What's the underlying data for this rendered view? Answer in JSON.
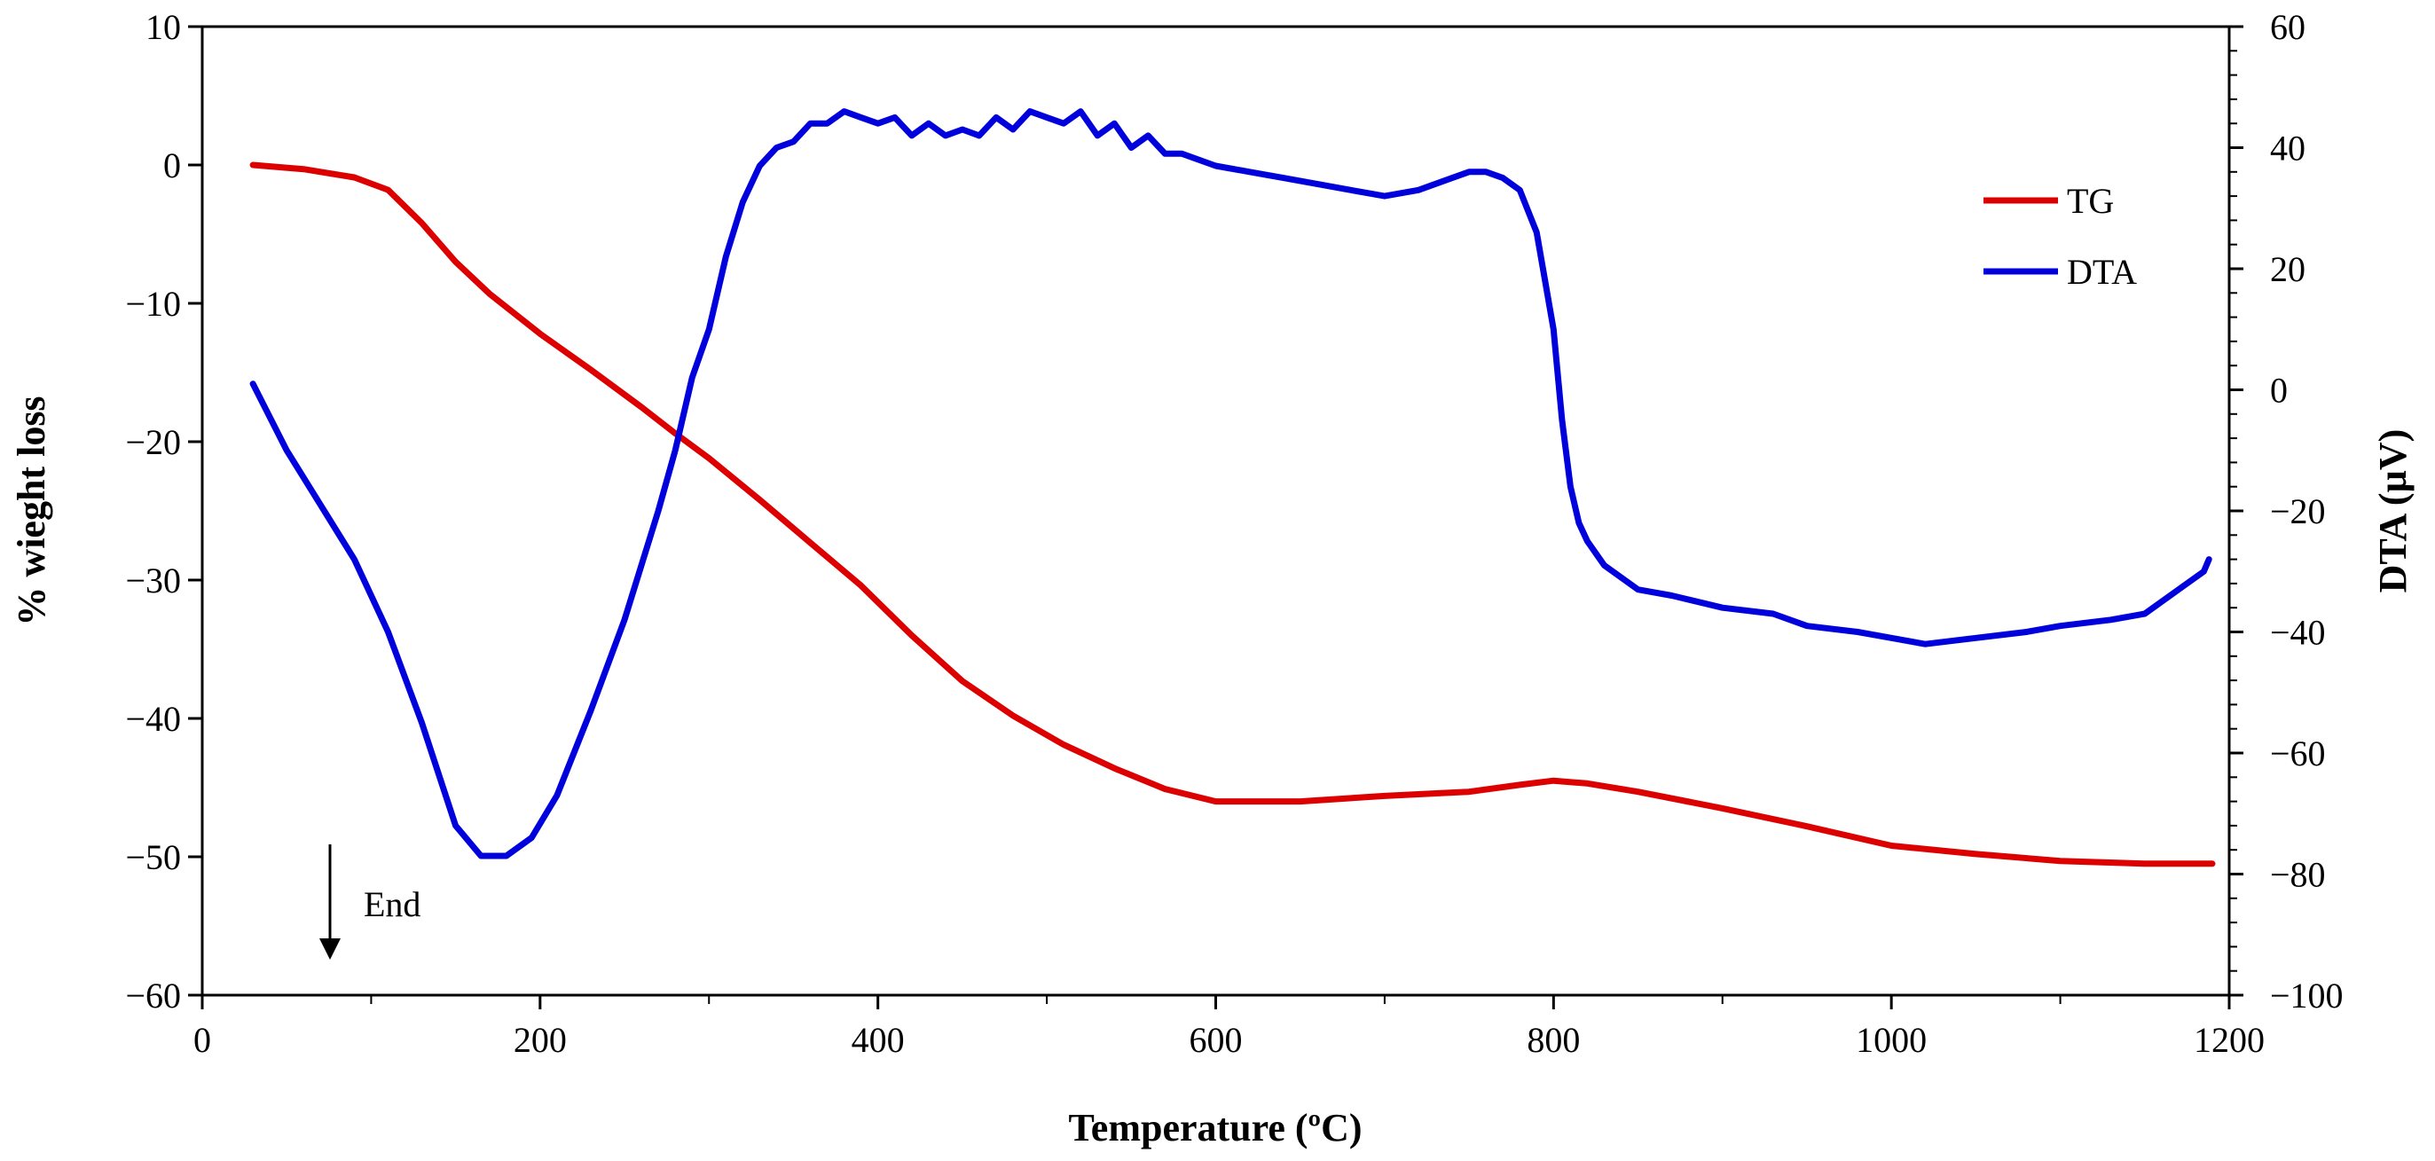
{
  "chart_data": {
    "type": "line",
    "title": "",
    "xlabel": "Temperature (ºC)",
    "ylabel_left": "% wieght loss",
    "ylabel_right": "DTA (µV)",
    "xlim": [
      0,
      1200
    ],
    "ylim_left": [
      -60,
      10
    ],
    "ylim_right": [
      -100,
      60
    ],
    "x_ticks": [
      0,
      200,
      400,
      600,
      800,
      1000,
      1200
    ],
    "y_left_ticks": [
      -60,
      -50,
      -40,
      -30,
      -20,
      -10,
      0,
      10
    ],
    "y_right_ticks": [
      -100,
      -80,
      -60,
      -40,
      -20,
      0,
      20,
      40,
      60
    ],
    "grid": false,
    "legend_position": "top-right",
    "series": [
      {
        "name": "TG",
        "axis": "left",
        "color": "#dd0000",
        "x": [
          30,
          60,
          90,
          110,
          130,
          150,
          170,
          200,
          230,
          260,
          280,
          300,
          330,
          360,
          390,
          420,
          450,
          480,
          510,
          540,
          570,
          600,
          650,
          700,
          750,
          780,
          800,
          820,
          850,
          900,
          950,
          1000,
          1050,
          1100,
          1150,
          1190
        ],
        "values": [
          0,
          -0.3,
          -0.9,
          -1.8,
          -4.2,
          -7.0,
          -9.3,
          -12.2,
          -14.8,
          -17.5,
          -19.4,
          -21.2,
          -24.2,
          -27.3,
          -30.4,
          -34.0,
          -37.3,
          -39.8,
          -41.9,
          -43.6,
          -45.1,
          -46.0,
          -46.0,
          -45.6,
          -45.3,
          -44.8,
          -44.5,
          -44.7,
          -45.3,
          -46.5,
          -47.8,
          -49.2,
          -49.8,
          -50.3,
          -50.5,
          -50.5
        ]
      },
      {
        "name": "DTA",
        "axis": "right",
        "color": "#0000dd",
        "x": [
          30,
          50,
          70,
          90,
          110,
          130,
          150,
          165,
          180,
          195,
          210,
          230,
          250,
          270,
          280,
          290,
          300,
          310,
          320,
          330,
          340,
          350,
          360,
          370,
          380,
          390,
          400,
          410,
          420,
          430,
          440,
          450,
          460,
          470,
          480,
          490,
          500,
          510,
          520,
          530,
          540,
          550,
          560,
          570,
          580,
          600,
          620,
          640,
          660,
          680,
          700,
          720,
          740,
          750,
          760,
          770,
          780,
          790,
          800,
          805,
          810,
          815,
          820,
          830,
          850,
          870,
          900,
          930,
          950,
          980,
          1000,
          1020,
          1050,
          1080,
          1100,
          1130,
          1150,
          1170,
          1185,
          1188
        ],
        "values": [
          1,
          -10,
          -19,
          -28,
          -40,
          -55,
          -72,
          -77,
          -77,
          -74,
          -67,
          -53,
          -38,
          -20,
          -10,
          2,
          10,
          22,
          31,
          37,
          40,
          41,
          44,
          44,
          46,
          45,
          44,
          45,
          42,
          44,
          42,
          43,
          42,
          45,
          43,
          46,
          45,
          44,
          46,
          42,
          44,
          40,
          42,
          39,
          39,
          37,
          36,
          35,
          34,
          33,
          32,
          33,
          35,
          36,
          36,
          35,
          33,
          26,
          10,
          -5,
          -16,
          -22,
          -25,
          -29,
          -33,
          -34,
          -36,
          -37,
          -39,
          -40,
          -41,
          -42,
          -41,
          -40,
          -39,
          -38,
          -37,
          -33,
          -30,
          -28
        ]
      }
    ],
    "legend": [
      {
        "label": "TG",
        "color": "#dd0000"
      },
      {
        "label": "DTA",
        "color": "#0000dd"
      }
    ],
    "annotations": [
      {
        "text": "End",
        "x": 75,
        "y_left": -49.5,
        "arrow": "down"
      }
    ]
  }
}
